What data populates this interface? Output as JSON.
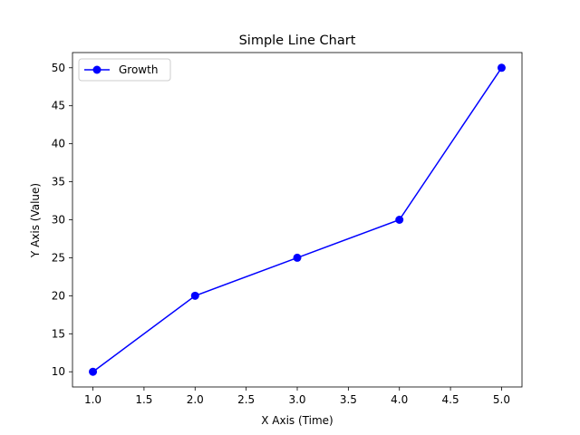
{
  "chart_data": {
    "type": "line",
    "title": "Simple Line Chart",
    "xlabel": "X Axis (Time)",
    "ylabel": "Y Axis (Value)",
    "x": [
      1.0,
      2.0,
      3.0,
      4.0,
      5.0
    ],
    "series": [
      {
        "name": "Growth",
        "values": [
          10,
          20,
          25,
          30,
          50
        ],
        "color": "#0000ff",
        "marker": "circle"
      }
    ],
    "xlim": [
      0.8,
      5.2
    ],
    "ylim": [
      8,
      52
    ],
    "xticks": [
      1.0,
      1.5,
      2.0,
      2.5,
      3.0,
      3.5,
      4.0,
      4.5,
      5.0
    ],
    "xtick_labels": [
      "1.0",
      "1.5",
      "2.0",
      "2.5",
      "3.0",
      "3.5",
      "4.0",
      "4.5",
      "5.0"
    ],
    "yticks": [
      10,
      15,
      20,
      25,
      30,
      35,
      40,
      45,
      50
    ],
    "ytick_labels": [
      "10",
      "15",
      "20",
      "25",
      "30",
      "35",
      "40",
      "45",
      "50"
    ],
    "grid": false,
    "legend": {
      "position": "upper-left",
      "entries": [
        "Growth"
      ]
    }
  }
}
